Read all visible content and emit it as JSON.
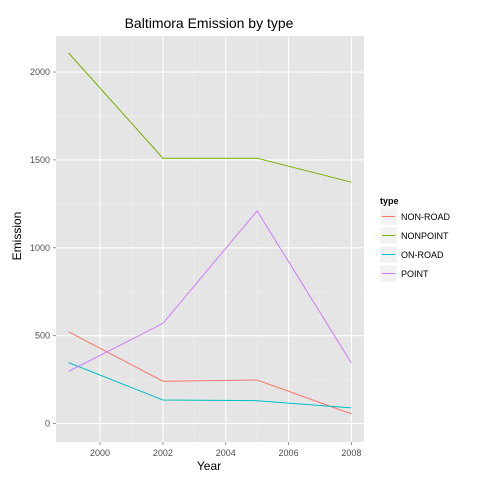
{
  "chart_data": {
    "type": "line",
    "title": "Baltimora Emission by type",
    "xlabel": "Year",
    "ylabel": "Emission",
    "x": [
      1999,
      2002,
      2005,
      2008
    ],
    "xlim": [
      1998.6,
      2008.4
    ],
    "ylim": [
      -105,
      2205
    ],
    "x_ticks": [
      2000,
      2002,
      2004,
      2006,
      2008
    ],
    "y_ticks": [
      0,
      500,
      1000,
      1500,
      2000
    ],
    "grid": true,
    "legend": {
      "title": "type",
      "position": "right"
    },
    "series": [
      {
        "name": "NON-ROAD",
        "color": "#F8766D",
        "values": [
          522,
          241,
          248,
          55
        ]
      },
      {
        "name": "NONPOINT",
        "color": "#7CAE00",
        "values": [
          2108,
          1510,
          1510,
          1373
        ]
      },
      {
        "name": "ON-ROAD",
        "color": "#00BFC4",
        "values": [
          347,
          134,
          130,
          89
        ]
      },
      {
        "name": "POINT",
        "color": "#C77CFF",
        "values": [
          297,
          570,
          1210,
          344
        ]
      }
    ]
  }
}
